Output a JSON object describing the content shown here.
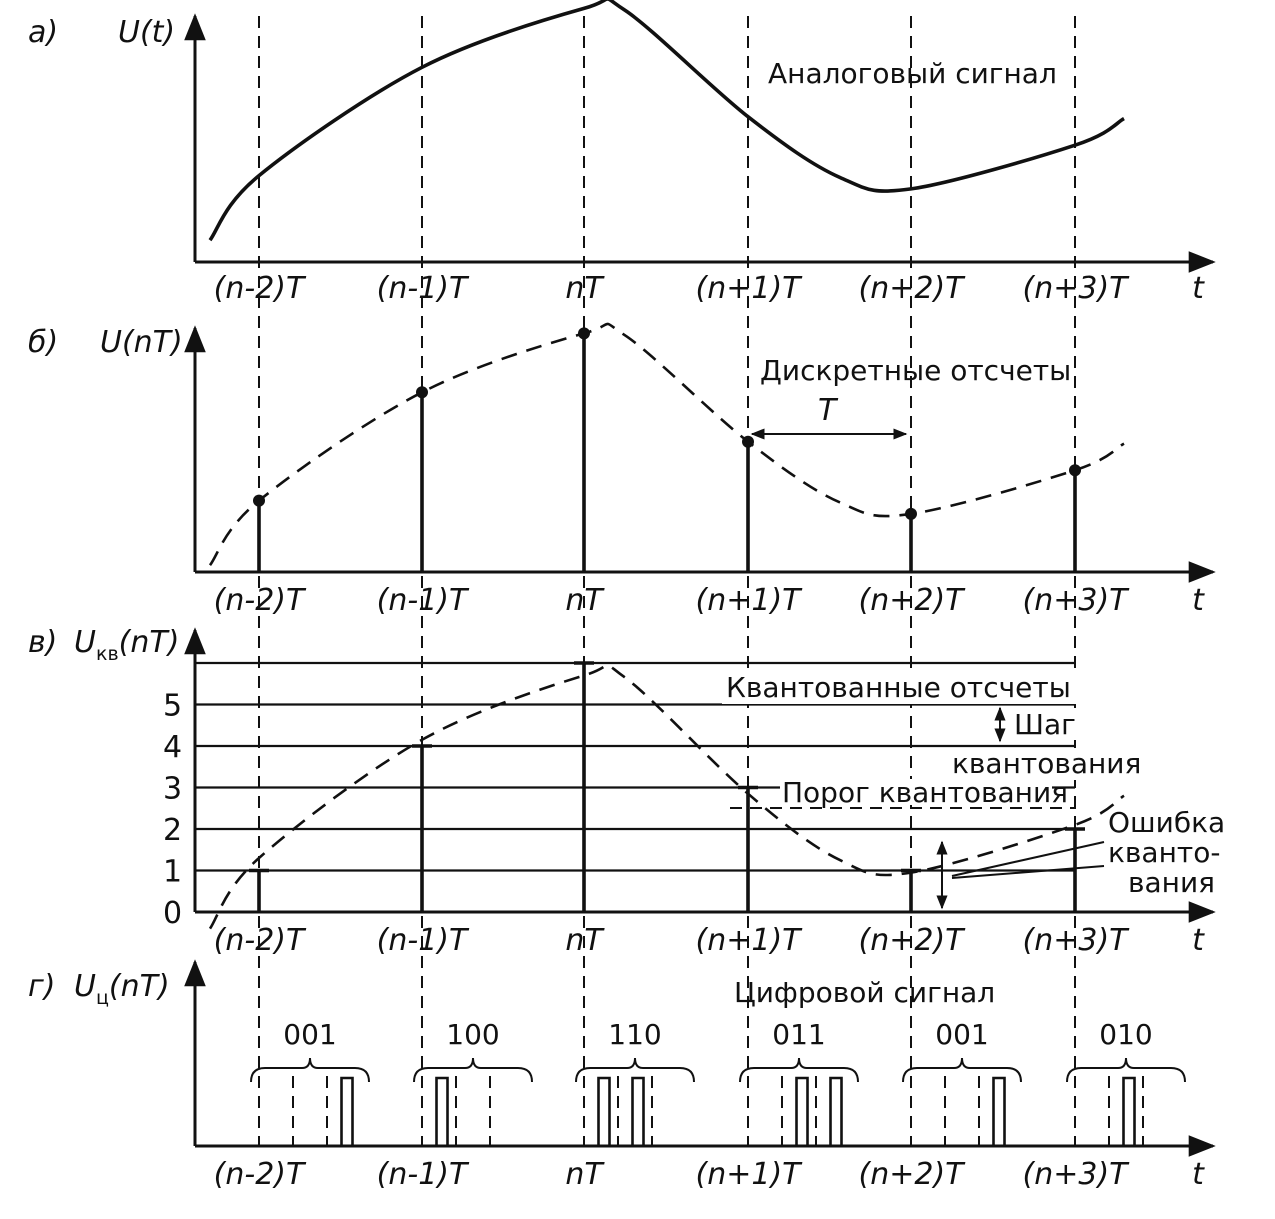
{
  "panels": {
    "a": {
      "letter": "а)",
      "ylabel": "U(t)",
      "caption": "Аналоговый сигнал"
    },
    "b": {
      "letter": "б)",
      "ylabel": "U(nT)",
      "caption": "Дискретные отсчеты",
      "period_label": "T"
    },
    "c": {
      "letter": "в)",
      "ylabel_main": "U",
      "ylabel_sub": "кв",
      "ylabel_arg": "(nT)",
      "caption": "Квантованные отсчеты",
      "step_label_1": "Шаг",
      "step_label_2": "квантования",
      "threshold_label": "Порог квантования",
      "error_label_1": "Ошибка",
      "error_label_2": "кванто-",
      "error_label_3": "вания",
      "levels": [
        "0",
        "1",
        "2",
        "3",
        "4",
        "5"
      ]
    },
    "d": {
      "letter": "г)",
      "ylabel_main": "U",
      "ylabel_sub": "ц",
      "ylabel_arg": "(nT)",
      "caption": "Цифровой сигнал",
      "codes": [
        "001",
        "100",
        "110",
        "011",
        "001",
        "010"
      ]
    }
  },
  "time_axis": {
    "t_label": "t",
    "ticks": [
      "(n-2)T",
      "(n-1)T",
      "nT",
      "(n+1)T",
      "(n+2)T",
      "(n+3)T"
    ]
  },
  "samples": {
    "analog_values": [
      1.3,
      4.15,
      5.7,
      2.85,
      0.95,
      2.1
    ],
    "quantized_levels": [
      1,
      4,
      6,
      3,
      1,
      2
    ]
  }
}
